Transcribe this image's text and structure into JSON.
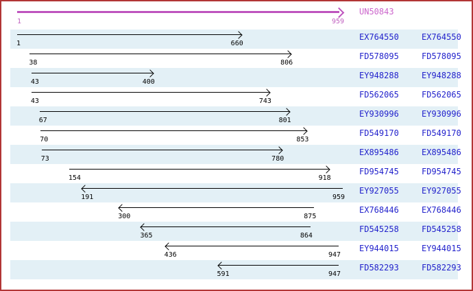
{
  "reference": {
    "name": "UN50843",
    "start": "1",
    "end": "959"
  },
  "scale": {
    "min": 1,
    "max": 959
  },
  "alignments": [
    {
      "name": "EX764550",
      "start": "1",
      "end": "660",
      "direction": "forward"
    },
    {
      "name": "FD578095",
      "start": "38",
      "end": "806",
      "direction": "forward"
    },
    {
      "name": "EY948288",
      "start": "43",
      "end": "400",
      "direction": "forward"
    },
    {
      "name": "FD562065",
      "start": "43",
      "end": "743",
      "direction": "forward"
    },
    {
      "name": "EY930996",
      "start": "67",
      "end": "801",
      "direction": "forward"
    },
    {
      "name": "FD549170",
      "start": "70",
      "end": "853",
      "direction": "forward"
    },
    {
      "name": "EX895486",
      "start": "73",
      "end": "780",
      "direction": "forward"
    },
    {
      "name": "FD954745",
      "start": "154",
      "end": "918",
      "direction": "forward"
    },
    {
      "name": "EY927055",
      "start": "191",
      "end": "959",
      "direction": "reverse"
    },
    {
      "name": "EX768446",
      "start": "300",
      "end": "875",
      "direction": "reverse"
    },
    {
      "name": "FD545258",
      "start": "365",
      "end": "864",
      "direction": "reverse"
    },
    {
      "name": "EY944015",
      "start": "436",
      "end": "947",
      "direction": "reverse"
    },
    {
      "name": "FD582293",
      "start": "591",
      "end": "947",
      "direction": "reverse"
    }
  ],
  "colors": {
    "frame_border": "#B23535",
    "reference_arrow": "#BE53BE",
    "reference_name_text": "#CC66CC",
    "reference_coord_text": "#C060C0",
    "accession_text": "#2222CC",
    "alignment_arrow": "#000000",
    "row_stripe": "#E3F0F6",
    "background": "#FFFFFF"
  }
}
